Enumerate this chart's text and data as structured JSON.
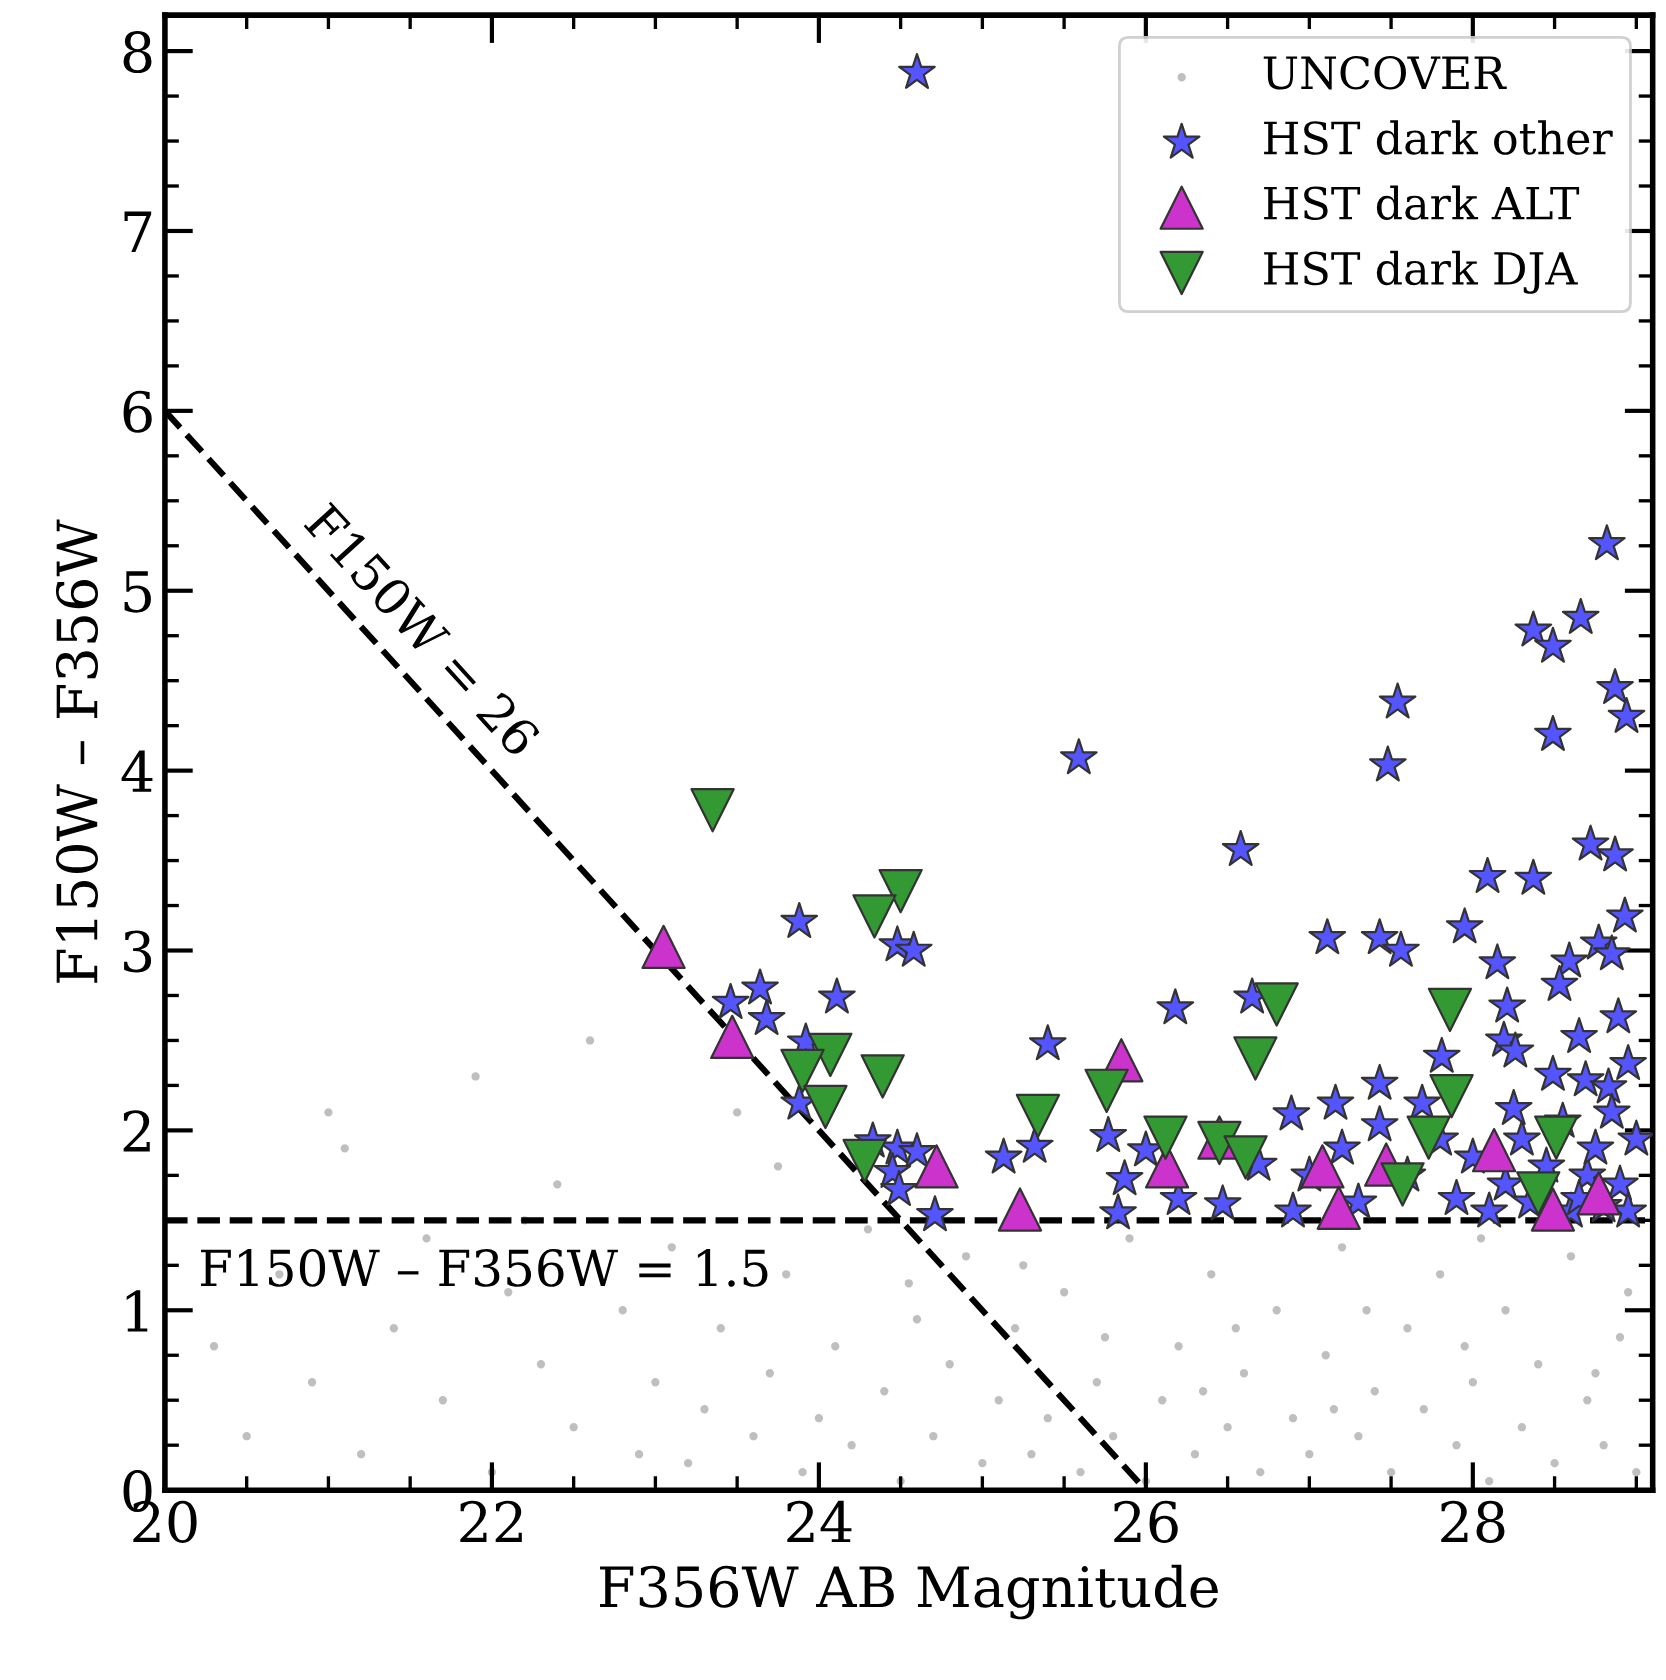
{
  "chart_data": {
    "type": "scatter",
    "xlabel": "F356W AB Magnitude",
    "ylabel": "F150W – F356W",
    "xlim": [
      20,
      29.1
    ],
    "ylim": [
      0,
      8.2
    ],
    "xticks": [
      20,
      22,
      24,
      26,
      28
    ],
    "yticks": [
      0,
      1,
      2,
      3,
      4,
      5,
      6,
      7,
      8
    ],
    "grid": false,
    "legend": "top right",
    "series": [
      {
        "name": "UNCOVER",
        "marker": "circle",
        "color": "#808080",
        "x": [
          20.3,
          20.5,
          20.7,
          20.9,
          21.1,
          21.2,
          21.4,
          21.6,
          21.7,
          21.9,
          22.0,
          22.1,
          22.3,
          22.4,
          22.5,
          22.6,
          22.8,
          22.9,
          23.0,
          23.1,
          23.2,
          23.3,
          23.4,
          23.5,
          23.6,
          23.7,
          23.8,
          23.9,
          24.0,
          24.1,
          24.2,
          24.3,
          24.4,
          24.5,
          24.6,
          24.7,
          24.8,
          24.9,
          25.0,
          25.1,
          25.2,
          25.3,
          25.4,
          25.5,
          25.6,
          25.7,
          25.8,
          25.9,
          26.0,
          26.1,
          26.2,
          26.3,
          26.4,
          26.5,
          26.6,
          26.7,
          26.8,
          26.9,
          27.0,
          27.1,
          27.2,
          27.3,
          27.4,
          27.5,
          27.6,
          27.7,
          27.8,
          27.9,
          28.0,
          28.1,
          28.2,
          28.3,
          28.4,
          28.5,
          28.6,
          28.7,
          28.8,
          28.9,
          29.0,
          28.95,
          27.35,
          26.55,
          25.75,
          25.25,
          28.05,
          28.75,
          27.95,
          27.15,
          26.35,
          24.55,
          23.75,
          22.2,
          21.0
        ],
        "values": [
          0.8,
          0.3,
          1.2,
          0.6,
          1.9,
          0.2,
          0.9,
          1.4,
          0.5,
          2.3,
          0.1,
          1.1,
          0.7,
          1.7,
          0.35,
          2.5,
          1.0,
          0.2,
          0.6,
          1.35,
          0.15,
          0.45,
          0.9,
          2.1,
          0.3,
          0.65,
          1.2,
          0.1,
          0.4,
          0.8,
          0.25,
          1.45,
          0.55,
          0.05,
          0.95,
          0.3,
          0.7,
          1.3,
          0.15,
          0.5,
          0.9,
          0.2,
          0.4,
          1.1,
          0.1,
          0.6,
          0.3,
          1.4,
          0.05,
          0.5,
          0.8,
          0.2,
          1.2,
          0.35,
          0.65,
          0.1,
          1.0,
          0.4,
          0.2,
          0.75,
          1.35,
          0.3,
          0.55,
          0.1,
          0.9,
          0.45,
          1.2,
          0.25,
          0.6,
          0.05,
          1.0,
          0.35,
          0.7,
          0.15,
          1.3,
          0.5,
          0.25,
          0.85,
          0.1,
          1.1,
          1.0,
          0.9,
          0.85,
          1.25,
          1.4,
          0.65,
          0.8,
          0.45,
          0.55,
          1.15,
          1.8,
          1.5,
          2.1
        ]
      },
      {
        "name": "HST dark other",
        "marker": "star",
        "color": "#5555ff",
        "x": [
          24.6,
          25.59,
          23.88,
          24.48,
          24.58,
          23.46,
          23.64,
          23.68,
          24.11,
          23.92,
          23.88,
          25.4,
          25.32,
          25.13,
          24.33,
          24.48,
          24.6,
          24.45,
          24.49,
          24.71,
          25.77,
          25.87,
          25.83,
          28.82,
          28.37,
          28.49,
          28.66,
          28.87,
          28.94,
          28.49,
          27.54,
          27.48,
          26.58,
          28.72,
          28.87,
          28.09,
          28.37,
          28.93,
          27.11,
          27.43,
          27.56,
          27.95,
          28.77,
          28.85,
          28.59,
          28.53,
          28.15,
          28.89,
          28.65,
          28.21,
          28.19,
          28.26,
          28.95,
          27.81,
          26.18,
          26.65,
          28.49,
          27.43,
          27.69,
          27.16,
          26.89,
          27.43,
          28.69,
          28.83,
          26.69,
          26.47,
          26.0,
          27.3,
          27.6,
          27.9,
          28.0,
          28.1,
          28.2,
          28.3,
          28.35,
          28.45,
          28.55,
          28.6,
          28.7,
          28.75,
          28.8,
          28.85,
          28.9,
          28.95,
          27.0,
          27.2,
          26.9,
          26.2,
          27.8,
          28.25,
          29.0,
          28.65
        ],
        "values": [
          7.88,
          4.07,
          3.16,
          3.03,
          3.0,
          2.71,
          2.79,
          2.62,
          2.74,
          2.49,
          2.15,
          2.48,
          1.91,
          1.85,
          1.94,
          1.9,
          1.88,
          1.77,
          1.67,
          1.53,
          1.97,
          1.73,
          1.54,
          5.26,
          4.78,
          4.69,
          4.85,
          4.46,
          4.3,
          4.2,
          4.38,
          4.03,
          3.56,
          3.59,
          3.53,
          3.41,
          3.4,
          3.19,
          3.07,
          3.07,
          3.0,
          3.13,
          3.04,
          2.98,
          2.94,
          2.81,
          2.93,
          2.63,
          2.52,
          2.69,
          2.5,
          2.44,
          2.37,
          2.41,
          2.68,
          2.74,
          2.31,
          2.26,
          2.15,
          2.15,
          2.09,
          2.03,
          2.28,
          2.24,
          1.81,
          1.59,
          1.89,
          1.6,
          1.75,
          1.62,
          1.85,
          1.55,
          1.7,
          1.95,
          1.6,
          1.8,
          2.05,
          1.55,
          1.75,
          1.9,
          1.58,
          2.1,
          1.7,
          1.55,
          1.75,
          1.9,
          1.55,
          1.62,
          1.95,
          2.12,
          1.95,
          1.62
        ]
      },
      {
        "name": "HST dark ALT",
        "marker": "triangle",
        "color": "#cc33cc",
        "x": [
          23.05,
          23.47,
          25.85,
          24.72,
          25.23,
          26.13,
          26.45,
          27.08,
          27.18,
          27.47,
          28.13,
          28.49,
          28.77
        ],
        "values": [
          3.02,
          2.52,
          2.39,
          1.8,
          1.56,
          1.8,
          1.96,
          1.8,
          1.57,
          1.81,
          1.89,
          1.56,
          1.65
        ]
      },
      {
        "name": "HST dark DJA",
        "marker": "triangle_down",
        "color": "#339933",
        "x": [
          23.35,
          24.5,
          24.34,
          24.07,
          23.9,
          24.39,
          24.04,
          25.76,
          25.34,
          24.28,
          26.8,
          26.67,
          27.86,
          27.87,
          26.12,
          26.45,
          26.61,
          27.57,
          27.73,
          28.51,
          28.4
        ],
        "values": [
          3.78,
          3.33,
          3.19,
          2.42,
          2.33,
          2.3,
          2.13,
          2.22,
          2.08,
          1.83,
          2.7,
          2.4,
          2.67,
          2.19,
          1.96,
          1.93,
          1.85,
          1.7,
          1.96,
          1.96,
          1.65
        ]
      },
      {
        "type": "line",
        "line_style": "dashed",
        "color": "#000000",
        "x": [
          20,
          26
        ],
        "values": [
          6,
          0
        ]
      }
    ],
    "ref_lines": [
      {
        "axis": "y",
        "value": 1.5,
        "label": "F150W – F356W = 1.5",
        "color": "#000000",
        "line_style": "dashed"
      }
    ],
    "annotations": [
      "F150W = 26"
    ]
  }
}
